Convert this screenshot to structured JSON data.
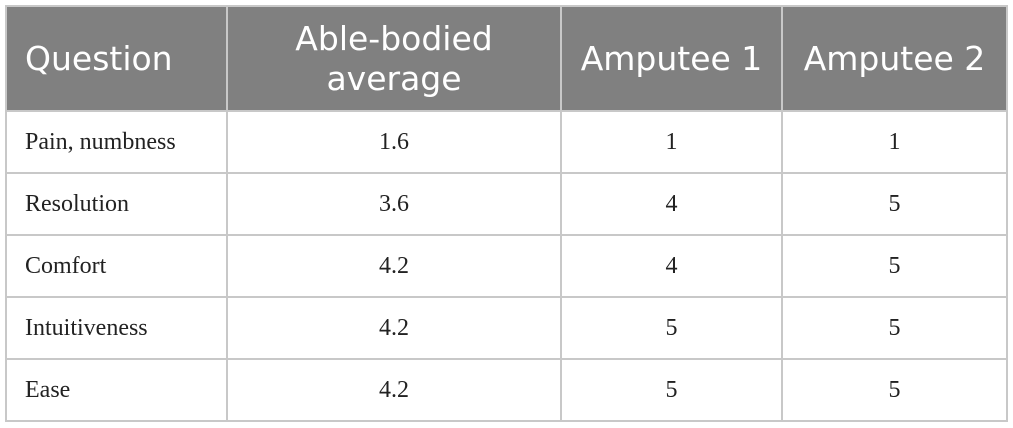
{
  "table": {
    "headers": [
      "Question",
      "Able-bodied average",
      "Amputee 1",
      "Amputee 2"
    ],
    "header_line1": "Able-bodied",
    "header_line2": "average",
    "rows": [
      {
        "question": "Pain, numbness",
        "able_bodied_average": "1.6",
        "amputee_1": "1",
        "amputee_2": "1"
      },
      {
        "question": "Resolution",
        "able_bodied_average": "3.6",
        "amputee_1": "4",
        "amputee_2": "5"
      },
      {
        "question": "Comfort",
        "able_bodied_average": "4.2",
        "amputee_1": "4",
        "amputee_2": "5"
      },
      {
        "question": "Intuitiveness",
        "able_bodied_average": "4.2",
        "amputee_1": "5",
        "amputee_2": "5"
      },
      {
        "question": "Ease",
        "able_bodied_average": "4.2",
        "amputee_1": "5",
        "amputee_2": "5"
      }
    ]
  },
  "colors": {
    "header_background": "#808080",
    "header_text": "#ffffff",
    "grid_line": "#c8c8c8",
    "body_text": "#222222"
  }
}
